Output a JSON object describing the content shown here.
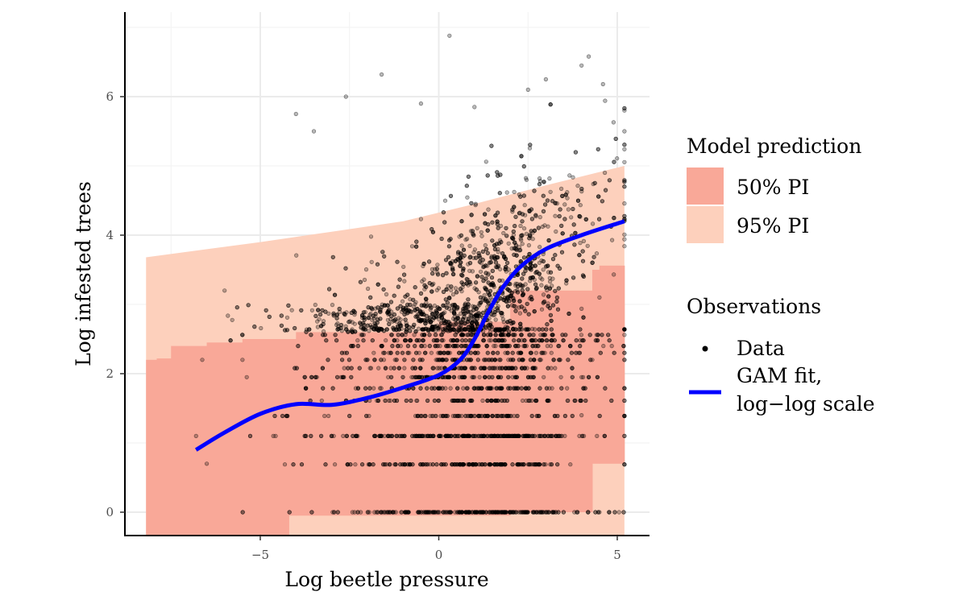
{
  "chart_data": {
    "type": "scatter",
    "xlabel": "Log beetle pressure",
    "ylabel": "Log infested trees",
    "xlim": [
      -8.7,
      5.9
    ],
    "ylim": [
      -0.35,
      7.1
    ],
    "x_ticks": [
      -5,
      0,
      5
    ],
    "x_tick_labels": [
      "−5",
      "0",
      "5"
    ],
    "y_ticks": [
      0,
      2,
      4,
      6
    ],
    "y_tick_labels": [
      "0",
      "2",
      "4",
      "6"
    ],
    "grid": true,
    "legend_position": "right",
    "legend": {
      "prediction_title": "Model prediction",
      "pi50_label": "50% PI",
      "pi95_label": "95% PI",
      "observations_title": "Observations",
      "data_label": "Data",
      "gam_label_line1": "GAM fit,",
      "gam_label_line2": "log−log scale"
    },
    "colors": {
      "pi50": "#f9a898",
      "pi95": "#fdd0bc",
      "gam": "#0000ff",
      "points": "#000000"
    },
    "pi95": {
      "x": [
        -8.2,
        -5.0,
        -3.0,
        -1.0,
        1.0,
        3.0,
        5.2
      ],
      "upper": [
        3.68,
        3.9,
        4.05,
        4.2,
        4.45,
        4.72,
        5.0
      ],
      "lower": [
        -0.35,
        -0.35,
        -0.35,
        -0.35,
        -0.35,
        -0.35,
        -0.35
      ]
    },
    "pi50": {
      "steps": [
        {
          "x0": -8.2,
          "x1": -7.9,
          "upper": 2.2,
          "lower": -0.35
        },
        {
          "x0": -7.9,
          "x1": -7.5,
          "upper": 2.22,
          "lower": -0.35
        },
        {
          "x0": -7.5,
          "x1": -6.5,
          "upper": 2.4,
          "lower": -0.35
        },
        {
          "x0": -6.5,
          "x1": -5.5,
          "upper": 2.45,
          "lower": -0.35
        },
        {
          "x0": -5.5,
          "x1": -4.2,
          "upper": 2.5,
          "lower": -0.35
        },
        {
          "x0": -4.2,
          "x1": -4.0,
          "upper": 2.5,
          "lower": -0.05
        },
        {
          "x0": -4.0,
          "x1": 0.0,
          "upper": 2.6,
          "lower": -0.05
        },
        {
          "x0": 0.0,
          "x1": 2.0,
          "upper": 2.75,
          "lower": -0.05
        },
        {
          "x0": 2.0,
          "x1": 4.3,
          "upper": 3.2,
          "lower": 0.0
        },
        {
          "x0": 4.3,
          "x1": 4.5,
          "upper": 3.5,
          "lower": 0.7
        },
        {
          "x0": 4.5,
          "x1": 5.2,
          "upper": 3.56,
          "lower": 0.7
        }
      ]
    },
    "gam_fit": {
      "x": [
        -6.8,
        -6.0,
        -5.0,
        -4.0,
        -3.0,
        -2.0,
        -1.0,
        0.0,
        0.6,
        1.0,
        1.4,
        1.8,
        2.3,
        3.0,
        4.0,
        5.2
      ],
      "y": [
        0.9,
        1.15,
        1.42,
        1.56,
        1.55,
        1.65,
        1.8,
        1.98,
        2.2,
        2.5,
        2.9,
        3.25,
        3.55,
        3.8,
        4.0,
        4.2
      ]
    },
    "observations": {
      "n_points": 4200,
      "x_range": [
        -7.0,
        5.2
      ],
      "discrete_y_levels": [
        0,
        0.69,
        1.1,
        1.39,
        1.61,
        1.79,
        1.95,
        2.08,
        2.2,
        2.3,
        2.4,
        2.48,
        2.56,
        2.64
      ],
      "notable_points": [
        {
          "x": 0.3,
          "y": 6.88
        },
        {
          "x": -1.6,
          "y": 6.32
        },
        {
          "x": -2.6,
          "y": 6.0
        },
        {
          "x": 4.2,
          "y": 6.58
        },
        {
          "x": 4.0,
          "y": 6.45
        },
        {
          "x": 5.2,
          "y": 5.8
        },
        {
          "x": 5.2,
          "y": 5.5
        },
        {
          "x": 4.6,
          "y": 6.18
        },
        {
          "x": 3.0,
          "y": 6.25
        },
        {
          "x": -4.0,
          "y": 5.75
        },
        {
          "x": -6.0,
          "y": 3.2
        },
        {
          "x": -6.5,
          "y": 0.7
        },
        {
          "x": -6.8,
          "y": 1.1
        },
        {
          "x": -5.5,
          "y": 2.2
        },
        {
          "x": 4.3,
          "y": 3.6
        },
        {
          "x": 4.5,
          "y": 3.1
        },
        {
          "x": 4.5,
          "y": 0.0
        },
        {
          "x": 3.8,
          "y": 0.0
        },
        {
          "x": 4.0,
          "y": 1.4
        },
        {
          "x": 4.3,
          "y": 2.2
        },
        {
          "x": -0.5,
          "y": 5.9
        },
        {
          "x": 2.5,
          "y": 6.1
        },
        {
          "x": 1.0,
          "y": 5.85
        },
        {
          "x": -3.5,
          "y": 5.5
        }
      ]
    }
  }
}
